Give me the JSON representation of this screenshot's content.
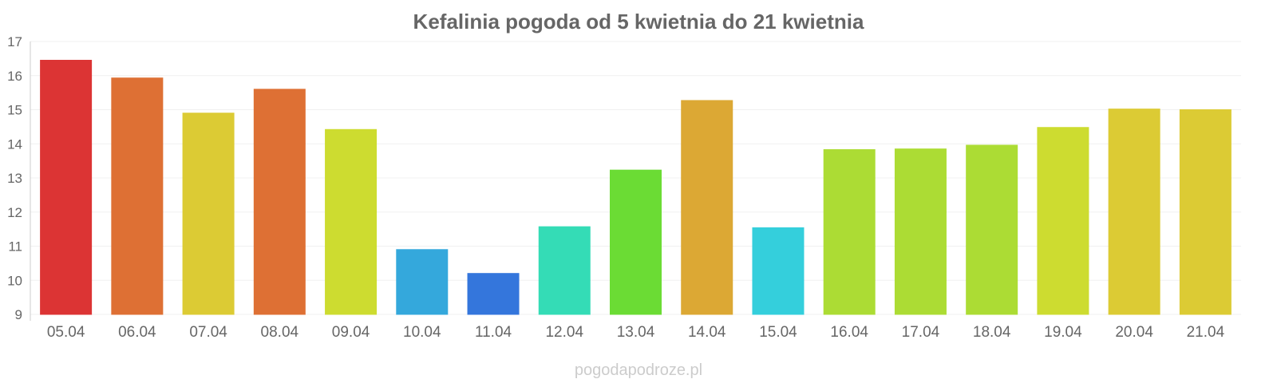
{
  "chart_data": {
    "type": "bar",
    "title": "Kefalinia pogoda od 5 kwietnia do 21 kwietnia",
    "xlabel": "",
    "ylabel": "",
    "ylim": [
      9,
      17
    ],
    "yticks": [
      "9",
      "10",
      "11",
      "12",
      "13",
      "14",
      "15",
      "16",
      "17"
    ],
    "grid": true,
    "categories": [
      "05.04",
      "06.04",
      "07.04",
      "08.04",
      "09.04",
      "10.04",
      "11.04",
      "12.04",
      "13.04",
      "14.04",
      "15.04",
      "16.04",
      "17.04",
      "18.04",
      "19.04",
      "20.04",
      "21.04"
    ],
    "values": [
      16.45,
      15.93,
      14.9,
      15.6,
      14.42,
      10.9,
      10.2,
      11.57,
      13.23,
      15.27,
      11.54,
      13.83,
      13.85,
      13.96,
      14.48,
      15.02,
      15.0
    ],
    "colors": [
      "#dc3434",
      "#de7034",
      "#dccb34",
      "#de7034",
      "#cddc30",
      "#34a8dc",
      "#3476dc",
      "#34dcb6",
      "#6bdc34",
      "#dca834",
      "#34cfdc",
      "#acdc34",
      "#acdc34",
      "#acdc34",
      "#cddc30",
      "#dccb34",
      "#dccb34"
    ]
  },
  "source": "pogodapodroze.pl"
}
